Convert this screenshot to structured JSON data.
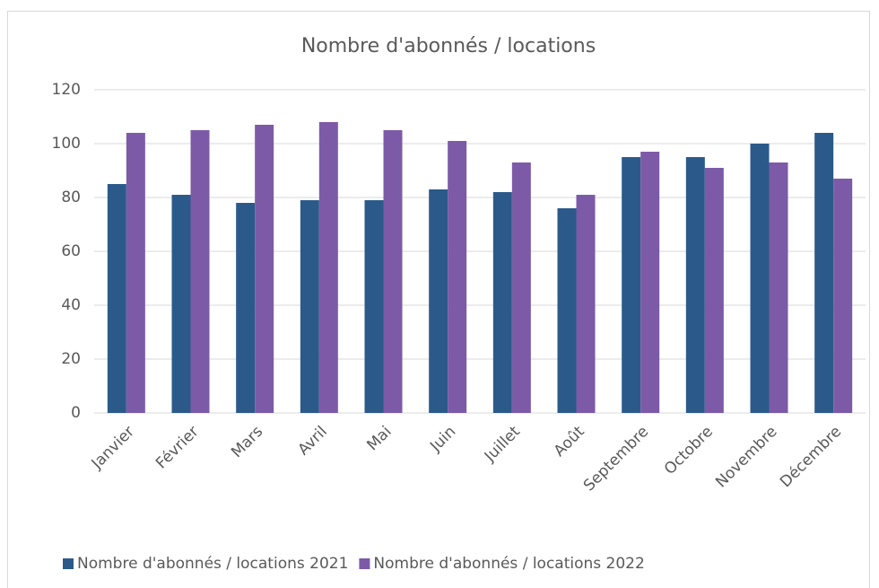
{
  "chart_data": {
    "type": "bar",
    "title": "Nombre d'abonnés / locations",
    "categories": [
      "Janvier",
      "Février",
      "Mars",
      "Avril",
      "Mai",
      "Juin",
      "Juillet",
      "Août",
      "Septembre",
      "Octobre",
      "Novembre",
      "Décembre"
    ],
    "series": [
      {
        "name": "Nombre d'abonnés / locations 2021",
        "color": "#2b5a8a",
        "values": [
          85,
          81,
          78,
          79,
          79,
          83,
          82,
          76,
          95,
          95,
          100,
          104
        ]
      },
      {
        "name": "Nombre d'abonnés / locations 2022",
        "color": "#7d5aa8",
        "values": [
          104,
          105,
          107,
          108,
          105,
          101,
          93,
          81,
          97,
          91,
          93,
          87
        ]
      }
    ],
    "ylim": [
      0,
      120
    ],
    "yticks": [
      0,
      20,
      40,
      60,
      80,
      100,
      120
    ],
    "grid": true,
    "legend": "bottom"
  }
}
